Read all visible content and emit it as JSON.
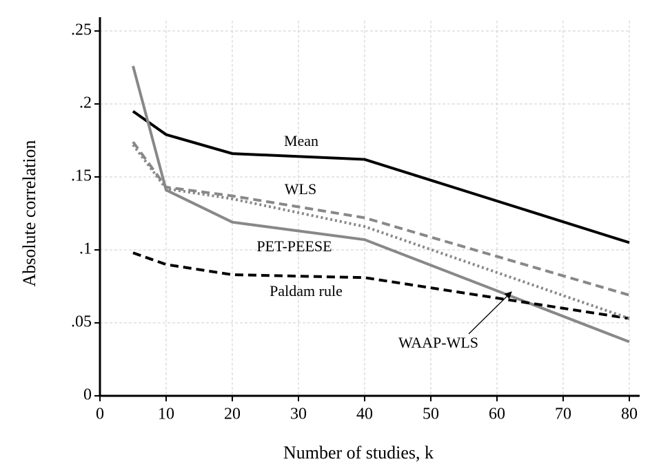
{
  "chart_data": {
    "type": "line",
    "xlabel": "Number of studies, k",
    "ylabel": "Absolute correlation",
    "x": [
      5,
      10,
      20,
      40,
      80
    ],
    "series": [
      {
        "name": "Mean",
        "color": "#000000",
        "style": "solid",
        "values": [
          0.195,
          0.179,
          0.166,
          0.162,
          0.105
        ]
      },
      {
        "name": "WLS",
        "color": "#888888",
        "style": "dashed",
        "values": [
          0.174,
          0.143,
          0.137,
          0.122,
          0.069
        ]
      },
      {
        "name": "PET-PEESE",
        "color": "#888888",
        "style": "solid",
        "values": [
          0.226,
          0.141,
          0.119,
          0.107,
          0.037
        ]
      },
      {
        "name": "Paldam rule",
        "color": "#000000",
        "style": "dashed",
        "values": [
          0.098,
          0.09,
          0.083,
          0.081,
          0.053
        ]
      },
      {
        "name": "WAAP-WLS",
        "color": "#888888",
        "style": "dotted",
        "values": [
          0.172,
          0.142,
          0.135,
          0.116,
          0.053
        ]
      }
    ],
    "xlim": [
      0,
      80
    ],
    "xticks": [
      0,
      10,
      20,
      30,
      40,
      50,
      60,
      70,
      80
    ],
    "ylim": [
      0,
      0.25
    ],
    "yticks": [
      0,
      {
        "value": 0.05,
        "label": ".05"
      },
      {
        "value": 0.1,
        "label": ".1"
      },
      {
        "value": 0.15,
        "label": ".15"
      },
      {
        "value": 0.2,
        "label": ".2"
      },
      {
        "value": 0.25,
        "label": ".25"
      }
    ],
    "grid": true
  }
}
